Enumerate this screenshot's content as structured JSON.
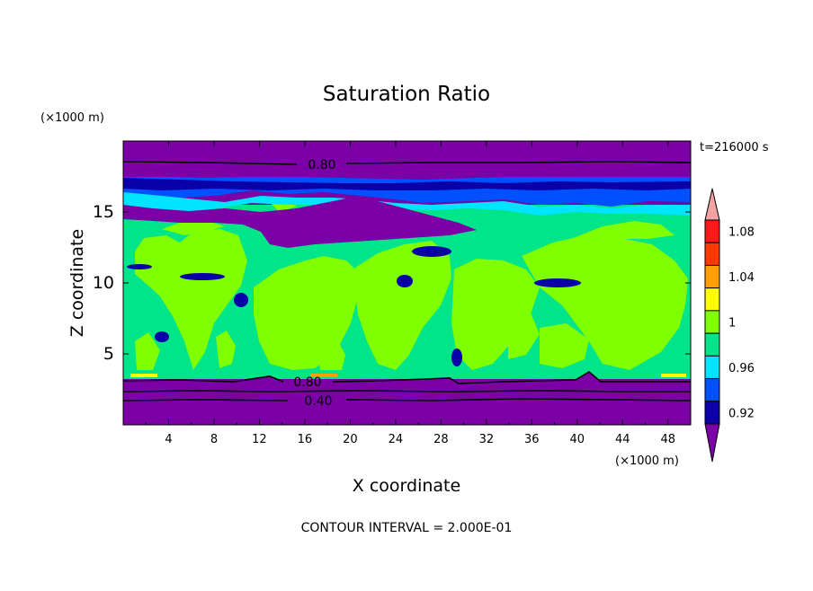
{
  "chart_data": {
    "type": "heatmap",
    "title": "Saturation Ratio",
    "xlabel": "X coordinate",
    "ylabel": "Z coordinate",
    "x_unit": "(×1000 m)",
    "y_unit": "(×1000 m)",
    "time_label": "t=216000 s",
    "footer": "CONTOUR INTERVAL = 2.000E-01",
    "xlim": [
      0,
      50
    ],
    "ylim": [
      0,
      20
    ],
    "x_ticks": [
      "4",
      "8",
      "12",
      "16",
      "20",
      "24",
      "28",
      "32",
      "36",
      "40",
      "44",
      "48"
    ],
    "y_ticks": [
      "5",
      "10",
      "15"
    ],
    "colorbar": {
      "labels": [
        "0.92",
        "0.96",
        "1",
        "1.04",
        "1.08"
      ],
      "levels": [
        0.92,
        0.94,
        0.96,
        0.98,
        1.0,
        1.02,
        1.04,
        1.06,
        1.08,
        1.1
      ],
      "colors": [
        "#7b00a6",
        "#0a00a8",
        "#0050ff",
        "#00e5ff",
        "#00e58a",
        "#7fff00",
        "#ffff00",
        "#ffa000",
        "#ff3a00",
        "#ff1a1a",
        "#f2a3a3"
      ]
    },
    "contour_labels": [
      "0.80",
      "0.80",
      "0.40"
    ],
    "bands": [
      {
        "z": [
          0,
          3.2
        ],
        "value": "< 0.92"
      },
      {
        "z": [
          3.2,
          14
        ],
        "value": "0.98 - 1.02"
      },
      {
        "z": [
          14,
          17.5
        ],
        "value": "0.92 - 0.96"
      },
      {
        "z": [
          17.5,
          20
        ],
        "value": "< 0.92"
      }
    ]
  }
}
